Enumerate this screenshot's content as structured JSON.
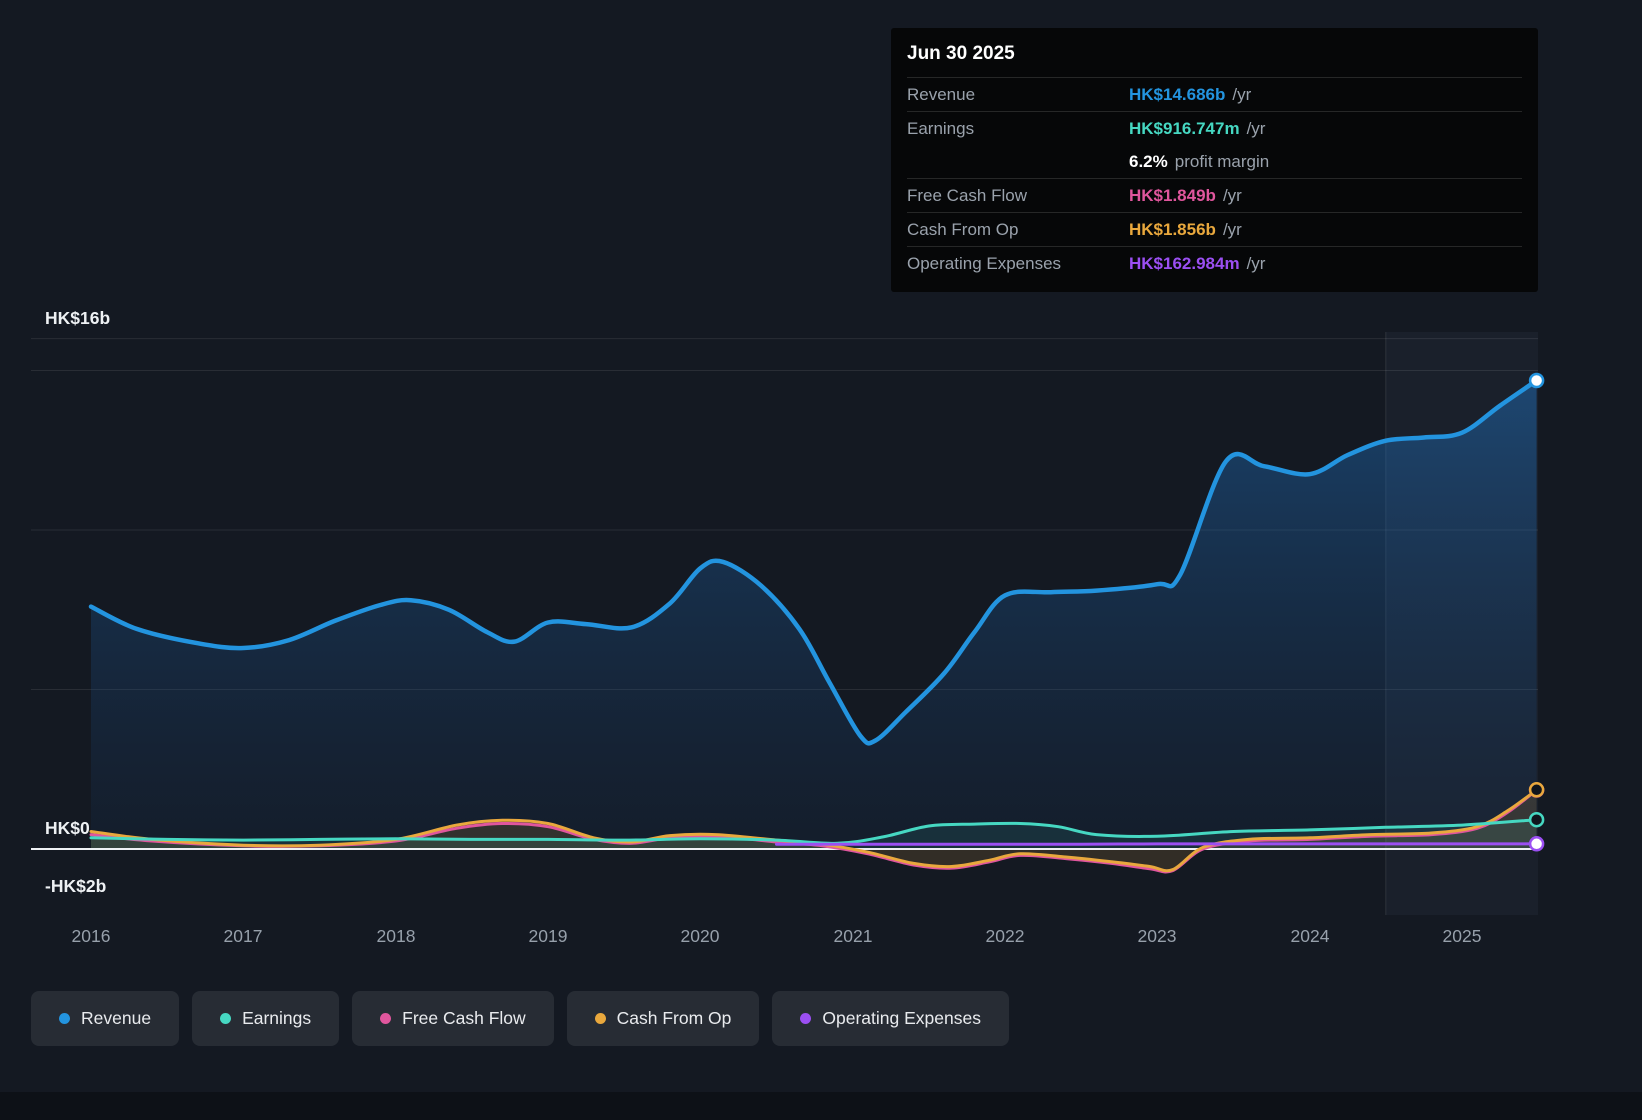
{
  "tooltip": {
    "date": "Jun 30 2025",
    "rows": [
      {
        "label": "Revenue",
        "value": "HK$14.686b",
        "suffix": "/yr",
        "color": "#2394df"
      },
      {
        "label": "Earnings",
        "value": "HK$916.747m",
        "suffix": "/yr",
        "color": "#46d8c2"
      },
      {
        "label": "",
        "value": "6.2%",
        "suffix": "profit margin",
        "color": "#ffffff"
      },
      {
        "label": "Free Cash Flow",
        "value": "HK$1.849b",
        "suffix": "/yr",
        "color": "#e0569d"
      },
      {
        "label": "Cash From Op",
        "value": "HK$1.856b",
        "suffix": "/yr",
        "color": "#e9a83d"
      },
      {
        "label": "Operating Expenses",
        "value": "HK$162.984m",
        "suffix": "/yr",
        "color": "#9b4ff2"
      }
    ]
  },
  "legend": [
    {
      "label": "Revenue",
      "color": "#2394df"
    },
    {
      "label": "Earnings",
      "color": "#46d8c2"
    },
    {
      "label": "Free Cash Flow",
      "color": "#e0569d"
    },
    {
      "label": "Cash From Op",
      "color": "#e9a83d"
    },
    {
      "label": "Operating Expenses",
      "color": "#9b4ff2"
    }
  ],
  "chart_data": {
    "type": "line",
    "title": "",
    "currency_unit": "HK$ billions",
    "legend_position": "bottom",
    "highlight_band_start_year": 2024.5,
    "x_axis": {
      "ticks": [
        "2016",
        "2017",
        "2018",
        "2019",
        "2020",
        "2021",
        "2022",
        "2023",
        "2024",
        "2025"
      ],
      "range_years": [
        2015.6,
        2025.5
      ]
    },
    "y_axis": {
      "labels": [
        {
          "text": "HK$16b",
          "value": 16
        },
        {
          "text": "HK$0",
          "value": 0
        },
        {
          "text": "-HK$2b",
          "value": -2
        }
      ],
      "gridline_values": [
        16,
        15,
        10,
        5
      ],
      "range": [
        -2.2,
        16.2
      ]
    },
    "series": [
      {
        "name": "Revenue",
        "color": "#2394df",
        "end_marker": "light",
        "points": [
          [
            2016.0,
            7.6
          ],
          [
            2016.3,
            6.9
          ],
          [
            2016.7,
            6.45
          ],
          [
            2017.0,
            6.3
          ],
          [
            2017.3,
            6.55
          ],
          [
            2017.6,
            7.15
          ],
          [
            2017.9,
            7.65
          ],
          [
            2018.1,
            7.8
          ],
          [
            2018.35,
            7.5
          ],
          [
            2018.6,
            6.8
          ],
          [
            2018.78,
            6.5
          ],
          [
            2019.0,
            7.1
          ],
          [
            2019.25,
            7.05
          ],
          [
            2019.55,
            6.95
          ],
          [
            2019.8,
            7.7
          ],
          [
            2020.0,
            8.8
          ],
          [
            2020.15,
            9.0
          ],
          [
            2020.4,
            8.25
          ],
          [
            2020.65,
            6.9
          ],
          [
            2020.85,
            5.2
          ],
          [
            2021.05,
            3.55
          ],
          [
            2021.15,
            3.4
          ],
          [
            2021.35,
            4.3
          ],
          [
            2021.6,
            5.5
          ],
          [
            2021.8,
            6.8
          ],
          [
            2022.0,
            7.95
          ],
          [
            2022.3,
            8.05
          ],
          [
            2022.6,
            8.1
          ],
          [
            2023.0,
            8.3
          ],
          [
            2023.15,
            8.6
          ],
          [
            2023.45,
            12.15
          ],
          [
            2023.7,
            12.0
          ],
          [
            2024.0,
            11.75
          ],
          [
            2024.25,
            12.35
          ],
          [
            2024.5,
            12.8
          ],
          [
            2024.75,
            12.9
          ],
          [
            2025.0,
            13.05
          ],
          [
            2025.25,
            13.9
          ],
          [
            2025.49,
            14.686
          ]
        ]
      },
      {
        "name": "Earnings",
        "color": "#46d8c2",
        "end_marker": "dark",
        "points": [
          [
            2016.0,
            0.35
          ],
          [
            2016.5,
            0.3
          ],
          [
            2017.0,
            0.28
          ],
          [
            2017.5,
            0.3
          ],
          [
            2018.0,
            0.32
          ],
          [
            2018.5,
            0.3
          ],
          [
            2019.0,
            0.3
          ],
          [
            2019.5,
            0.28
          ],
          [
            2020.0,
            0.32
          ],
          [
            2020.5,
            0.28
          ],
          [
            2020.9,
            0.18
          ],
          [
            2021.2,
            0.38
          ],
          [
            2021.5,
            0.72
          ],
          [
            2021.8,
            0.78
          ],
          [
            2022.1,
            0.8
          ],
          [
            2022.35,
            0.7
          ],
          [
            2022.6,
            0.45
          ],
          [
            2023.0,
            0.4
          ],
          [
            2023.5,
            0.55
          ],
          [
            2024.0,
            0.6
          ],
          [
            2024.5,
            0.68
          ],
          [
            2025.0,
            0.75
          ],
          [
            2025.49,
            0.917
          ]
        ]
      },
      {
        "name": "Free Cash Flow",
        "color": "#e0569d",
        "end_marker": "dark",
        "points": [
          [
            2016.0,
            0.45
          ],
          [
            2016.4,
            0.25
          ],
          [
            2017.0,
            0.1
          ],
          [
            2017.5,
            0.1
          ],
          [
            2018.0,
            0.25
          ],
          [
            2018.4,
            0.65
          ],
          [
            2018.7,
            0.8
          ],
          [
            2019.0,
            0.7
          ],
          [
            2019.3,
            0.3
          ],
          [
            2019.55,
            0.18
          ],
          [
            2019.8,
            0.35
          ],
          [
            2020.1,
            0.4
          ],
          [
            2020.5,
            0.22
          ],
          [
            2020.8,
            0.1
          ],
          [
            2021.1,
            -0.15
          ],
          [
            2021.4,
            -0.5
          ],
          [
            2021.65,
            -0.6
          ],
          [
            2021.9,
            -0.4
          ],
          [
            2022.1,
            -0.2
          ],
          [
            2022.4,
            -0.3
          ],
          [
            2022.7,
            -0.45
          ],
          [
            2022.95,
            -0.62
          ],
          [
            2023.1,
            -0.68
          ],
          [
            2023.3,
            0.0
          ],
          [
            2023.6,
            0.25
          ],
          [
            2024.0,
            0.3
          ],
          [
            2024.4,
            0.4
          ],
          [
            2024.8,
            0.45
          ],
          [
            2025.1,
            0.65
          ],
          [
            2025.3,
            1.15
          ],
          [
            2025.49,
            1.849
          ]
        ]
      },
      {
        "name": "Cash From Op",
        "color": "#e9a83d",
        "end_marker": "dark",
        "points": [
          [
            2016.0,
            0.55
          ],
          [
            2016.4,
            0.3
          ],
          [
            2017.0,
            0.12
          ],
          [
            2017.5,
            0.12
          ],
          [
            2018.0,
            0.3
          ],
          [
            2018.4,
            0.75
          ],
          [
            2018.7,
            0.9
          ],
          [
            2019.0,
            0.8
          ],
          [
            2019.3,
            0.35
          ],
          [
            2019.55,
            0.22
          ],
          [
            2019.8,
            0.42
          ],
          [
            2020.1,
            0.45
          ],
          [
            2020.5,
            0.28
          ],
          [
            2020.8,
            0.15
          ],
          [
            2021.1,
            -0.1
          ],
          [
            2021.4,
            -0.45
          ],
          [
            2021.65,
            -0.55
          ],
          [
            2021.9,
            -0.35
          ],
          [
            2022.1,
            -0.15
          ],
          [
            2022.4,
            -0.25
          ],
          [
            2022.7,
            -0.4
          ],
          [
            2022.95,
            -0.55
          ],
          [
            2023.1,
            -0.65
          ],
          [
            2023.3,
            0.05
          ],
          [
            2023.6,
            0.3
          ],
          [
            2024.0,
            0.35
          ],
          [
            2024.4,
            0.45
          ],
          [
            2024.8,
            0.5
          ],
          [
            2025.1,
            0.7
          ],
          [
            2025.3,
            1.2
          ],
          [
            2025.49,
            1.856
          ]
        ]
      },
      {
        "name": "Operating Expenses",
        "color": "#9b4ff2",
        "end_marker": "light",
        "points": [
          [
            2020.5,
            0.15
          ],
          [
            2021.0,
            0.15
          ],
          [
            2021.5,
            0.15
          ],
          [
            2022.0,
            0.15
          ],
          [
            2022.5,
            0.15
          ],
          [
            2023.0,
            0.16
          ],
          [
            2023.5,
            0.16
          ],
          [
            2024.0,
            0.16
          ],
          [
            2024.5,
            0.16
          ],
          [
            2025.0,
            0.16
          ],
          [
            2025.49,
            0.163
          ]
        ]
      }
    ]
  }
}
